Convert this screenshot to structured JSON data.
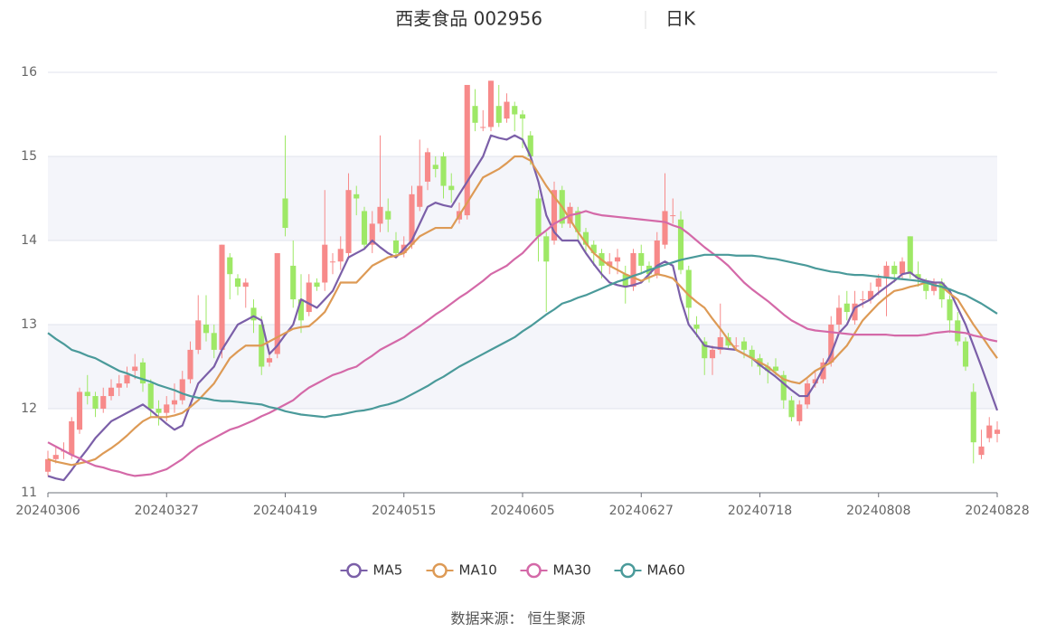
{
  "chart_data": {
    "type": "candlestick",
    "title": "西麦食品 002956",
    "subtitle": "日K",
    "source": "数据来源： 恒生聚源",
    "up_color": "#f78a8a",
    "down_color": "#9ee866",
    "ylim": [
      11,
      16
    ],
    "yticks": [
      11,
      12,
      13,
      14,
      15,
      16
    ],
    "grid": true,
    "legend": "bottom",
    "categories": [
      "20240306",
      null,
      null,
      null,
      null,
      null,
      null,
      null,
      null,
      null,
      null,
      null,
      null,
      null,
      null,
      "20240327",
      null,
      null,
      null,
      null,
      null,
      null,
      null,
      null,
      null,
      null,
      null,
      null,
      null,
      null,
      "20240419",
      null,
      null,
      null,
      null,
      null,
      null,
      null,
      null,
      null,
      null,
      null,
      null,
      null,
      null,
      "20240515",
      null,
      null,
      null,
      null,
      null,
      null,
      null,
      null,
      null,
      null,
      null,
      null,
      null,
      null,
      "20240605",
      null,
      null,
      null,
      null,
      null,
      null,
      null,
      null,
      null,
      null,
      null,
      null,
      null,
      null,
      "20240627",
      null,
      null,
      null,
      null,
      null,
      null,
      null,
      null,
      null,
      null,
      null,
      null,
      null,
      null,
      "20240718",
      null,
      null,
      null,
      null,
      null,
      null,
      null,
      null,
      null,
      null,
      null,
      null,
      null,
      null,
      "20240808",
      null,
      null,
      null,
      null,
      null,
      null,
      null,
      null,
      null,
      null,
      null,
      null,
      null,
      null,
      "20240828"
    ],
    "candles": [
      [
        11.25,
        11.4,
        11.2,
        11.5
      ],
      [
        11.4,
        11.45,
        11.35,
        11.55
      ],
      [
        11.5,
        11.5,
        11.4,
        11.6
      ],
      [
        11.45,
        11.85,
        11.4,
        11.9
      ],
      [
        11.75,
        12.2,
        11.7,
        12.25
      ],
      [
        12.2,
        12.15,
        12.05,
        12.4
      ],
      [
        12.15,
        12.0,
        11.9,
        12.2
      ],
      [
        12.0,
        12.15,
        11.95,
        12.25
      ],
      [
        12.15,
        12.25,
        12.1,
        12.35
      ],
      [
        12.25,
        12.3,
        12.15,
        12.4
      ],
      [
        12.3,
        12.4,
        12.25,
        12.5
      ],
      [
        12.45,
        12.5,
        12.35,
        12.65
      ],
      [
        12.55,
        12.3,
        12.2,
        12.6
      ],
      [
        12.3,
        12.0,
        11.9,
        12.35
      ],
      [
        12.0,
        11.95,
        11.8,
        12.1
      ],
      [
        11.95,
        12.05,
        11.85,
        12.15
      ],
      [
        12.05,
        12.1,
        11.95,
        12.3
      ],
      [
        12.1,
        12.35,
        12.05,
        12.45
      ],
      [
        12.35,
        12.7,
        12.3,
        12.8
      ],
      [
        12.7,
        13.05,
        12.65,
        13.35
      ],
      [
        13.0,
        12.9,
        12.8,
        13.35
      ],
      [
        12.9,
        12.7,
        12.6,
        13.0
      ],
      [
        12.7,
        13.95,
        12.6,
        13.95
      ],
      [
        13.8,
        13.6,
        13.3,
        13.85
      ],
      [
        13.55,
        13.45,
        13.35,
        13.6
      ],
      [
        13.45,
        13.5,
        13.2,
        13.55
      ],
      [
        13.2,
        13.05,
        12.9,
        13.3
      ],
      [
        13.0,
        12.5,
        12.4,
        13.1
      ],
      [
        12.55,
        12.6,
        12.5,
        12.65
      ],
      [
        12.65,
        13.85,
        12.6,
        13.85
      ],
      [
        14.5,
        14.15,
        14.05,
        15.25
      ],
      [
        13.7,
        13.3,
        13.2,
        14.0
      ],
      [
        13.3,
        13.05,
        12.9,
        13.6
      ],
      [
        13.15,
        13.5,
        13.1,
        13.6
      ],
      [
        13.5,
        13.45,
        13.4,
        13.55
      ],
      [
        13.5,
        13.95,
        13.4,
        14.6
      ],
      [
        13.75,
        13.75,
        13.6,
        13.85
      ],
      [
        13.75,
        13.9,
        13.65,
        14.05
      ],
      [
        13.85,
        14.6,
        13.8,
        14.8
      ],
      [
        14.55,
        14.5,
        14.3,
        14.65
      ],
      [
        14.35,
        13.95,
        13.9,
        14.4
      ],
      [
        13.95,
        14.2,
        13.85,
        14.35
      ],
      [
        14.2,
        14.4,
        14.1,
        15.25
      ],
      [
        14.35,
        14.25,
        14.1,
        14.5
      ],
      [
        14.0,
        13.85,
        13.8,
        14.1
      ],
      [
        13.85,
        13.95,
        13.8,
        14.05
      ],
      [
        13.95,
        14.55,
        13.9,
        14.65
      ],
      [
        14.4,
        14.65,
        14.35,
        15.2
      ],
      [
        14.7,
        15.05,
        14.6,
        15.1
      ],
      [
        14.9,
        14.85,
        14.75,
        15.0
      ],
      [
        15.0,
        14.65,
        14.5,
        15.05
      ],
      [
        14.65,
        14.6,
        14.45,
        14.8
      ],
      [
        14.25,
        14.35,
        14.2,
        14.45
      ],
      [
        14.3,
        15.85,
        14.25,
        15.85
      ],
      [
        15.6,
        15.4,
        15.3,
        15.8
      ],
      [
        15.35,
        15.35,
        15.3,
        15.55
      ],
      [
        15.35,
        15.9,
        15.3,
        15.9
      ],
      [
        15.6,
        15.4,
        15.35,
        15.85
      ],
      [
        15.45,
        15.65,
        15.4,
        15.75
      ],
      [
        15.6,
        15.5,
        15.3,
        15.65
      ],
      [
        15.5,
        15.45,
        15.1,
        15.55
      ],
      [
        15.25,
        15.0,
        14.9,
        15.3
      ],
      [
        14.5,
        14.05,
        13.75,
        14.6
      ],
      [
        14.05,
        13.75,
        13.15,
        14.1
      ],
      [
        14.0,
        14.6,
        13.95,
        14.7
      ],
      [
        14.6,
        14.2,
        14.15,
        14.65
      ],
      [
        14.2,
        14.4,
        14.15,
        14.45
      ],
      [
        14.35,
        14.1,
        14.0,
        14.4
      ],
      [
        14.1,
        13.95,
        13.85,
        14.15
      ],
      [
        13.95,
        13.85,
        13.7,
        14.0
      ],
      [
        13.85,
        13.7,
        13.55,
        13.9
      ],
      [
        13.7,
        13.75,
        13.6,
        13.85
      ],
      [
        13.75,
        13.8,
        13.6,
        13.9
      ],
      [
        13.6,
        13.45,
        13.25,
        13.7
      ],
      [
        13.45,
        13.85,
        13.4,
        13.9
      ],
      [
        13.85,
        13.7,
        13.6,
        13.95
      ],
      [
        13.7,
        13.6,
        13.5,
        13.75
      ],
      [
        13.6,
        14.0,
        13.55,
        14.1
      ],
      [
        13.95,
        14.35,
        13.9,
        14.8
      ],
      [
        14.3,
        14.3,
        14.2,
        14.5
      ],
      [
        14.25,
        13.65,
        13.6,
        14.35
      ],
      [
        13.65,
        13.2,
        13.05,
        13.7
      ],
      [
        13.0,
        12.95,
        12.85,
        13.1
      ],
      [
        12.8,
        12.6,
        12.4,
        12.85
      ],
      [
        12.6,
        12.7,
        12.4,
        12.75
      ],
      [
        12.7,
        12.85,
        12.65,
        13.25
      ],
      [
        12.85,
        12.75,
        12.7,
        12.9
      ],
      [
        12.75,
        12.75,
        12.7,
        12.85
      ],
      [
        12.8,
        12.7,
        12.6,
        12.85
      ],
      [
        12.7,
        12.6,
        12.5,
        12.75
      ],
      [
        12.6,
        12.5,
        12.4,
        12.65
      ],
      [
        12.5,
        12.45,
        12.3,
        12.55
      ],
      [
        12.5,
        12.45,
        12.4,
        12.6
      ],
      [
        12.4,
        12.1,
        12.0,
        12.45
      ],
      [
        12.1,
        11.9,
        11.85,
        12.15
      ],
      [
        11.85,
        12.05,
        11.8,
        12.1
      ],
      [
        12.05,
        12.3,
        12.0,
        12.35
      ],
      [
        12.3,
        12.35,
        12.25,
        12.45
      ],
      [
        12.35,
        12.55,
        12.3,
        12.6
      ],
      [
        12.55,
        13.0,
        12.5,
        13.1
      ],
      [
        13.0,
        13.2,
        12.9,
        13.35
      ],
      [
        13.25,
        13.15,
        13.05,
        13.4
      ],
      [
        13.05,
        13.25,
        13.0,
        13.4
      ],
      [
        13.3,
        13.3,
        13.2,
        13.4
      ],
      [
        13.3,
        13.4,
        13.25,
        13.5
      ],
      [
        13.45,
        13.55,
        13.35,
        13.6
      ],
      [
        13.55,
        13.7,
        13.1,
        13.75
      ],
      [
        13.7,
        13.6,
        13.5,
        13.75
      ],
      [
        13.6,
        13.75,
        13.55,
        13.8
      ],
      [
        14.05,
        13.6,
        13.55,
        14.05
      ],
      [
        13.6,
        13.55,
        13.45,
        13.75
      ],
      [
        13.5,
        13.4,
        13.3,
        13.55
      ],
      [
        13.4,
        13.5,
        13.35,
        13.55
      ],
      [
        13.5,
        13.3,
        13.2,
        13.55
      ],
      [
        13.3,
        13.05,
        12.9,
        13.35
      ],
      [
        13.05,
        12.8,
        12.75,
        13.15
      ],
      [
        12.8,
        12.5,
        12.45,
        12.85
      ],
      [
        12.2,
        11.6,
        11.35,
        12.3
      ],
      [
        11.45,
        11.55,
        11.4,
        11.75
      ],
      [
        11.65,
        11.8,
        11.6,
        11.9
      ],
      [
        11.7,
        11.75,
        11.6,
        11.85
      ]
    ],
    "series": [
      {
        "name": "MA5",
        "color": "#7b5fa8",
        "values": [
          11.2,
          11.17,
          11.15,
          11.27,
          11.4,
          11.52,
          11.65,
          11.75,
          11.85,
          11.9,
          11.95,
          12.0,
          12.05,
          11.98,
          11.9,
          11.82,
          11.75,
          11.8,
          12.05,
          12.3,
          12.4,
          12.5,
          12.7,
          12.85,
          13.0,
          13.05,
          13.1,
          13.05,
          12.65,
          12.75,
          12.88,
          13.0,
          13.3,
          13.25,
          13.2,
          13.3,
          13.4,
          13.6,
          13.8,
          13.85,
          13.9,
          14.0,
          13.92,
          13.85,
          13.8,
          13.9,
          14.0,
          14.2,
          14.4,
          14.45,
          14.42,
          14.4,
          14.55,
          14.7,
          14.85,
          15.0,
          15.25,
          15.22,
          15.2,
          15.25,
          15.2,
          15.0,
          14.7,
          14.3,
          14.1,
          14.0,
          14.0,
          14.0,
          13.85,
          13.72,
          13.6,
          13.5,
          13.47,
          13.45,
          13.47,
          13.5,
          13.6,
          13.7,
          13.75,
          13.7,
          13.3,
          13.0,
          12.88,
          12.75,
          12.73,
          12.72,
          12.71,
          12.7,
          12.65,
          12.6,
          12.52,
          12.45,
          12.38,
          12.3,
          12.22,
          12.15,
          12.15,
          12.3,
          12.48,
          12.65,
          12.9,
          13.0,
          13.2,
          13.25,
          13.3,
          13.38,
          13.45,
          13.52,
          13.6,
          13.62,
          13.55,
          13.52,
          13.5,
          13.5,
          13.4,
          13.2,
          13.0,
          12.75,
          12.5,
          12.24,
          11.98
        ]
      },
      {
        "name": "MA10",
        "color": "#dd9a55",
        "values": [
          11.4,
          11.37,
          11.35,
          11.33,
          11.35,
          11.37,
          11.4,
          11.47,
          11.53,
          11.6,
          11.68,
          11.77,
          11.85,
          11.9,
          11.9,
          11.9,
          11.92,
          11.95,
          12.02,
          12.1,
          12.2,
          12.3,
          12.45,
          12.6,
          12.68,
          12.75,
          12.75,
          12.75,
          12.8,
          12.85,
          12.9,
          12.95,
          12.97,
          12.98,
          13.06,
          13.15,
          13.32,
          13.5,
          13.5,
          13.5,
          13.6,
          13.7,
          13.75,
          13.8,
          13.82,
          13.85,
          13.95,
          14.05,
          14.1,
          14.15,
          14.15,
          14.15,
          14.3,
          14.45,
          14.6,
          14.75,
          14.8,
          14.85,
          14.92,
          15.0,
          15.0,
          14.95,
          14.8,
          14.65,
          14.52,
          14.4,
          14.25,
          14.1,
          13.97,
          13.85,
          13.77,
          13.7,
          13.65,
          13.6,
          13.56,
          13.52,
          13.56,
          13.6,
          13.58,
          13.55,
          13.45,
          13.35,
          13.27,
          13.2,
          13.07,
          12.95,
          12.82,
          12.7,
          12.65,
          12.6,
          12.55,
          12.5,
          12.42,
          12.35,
          12.32,
          12.3,
          12.37,
          12.45,
          12.5,
          12.55,
          12.65,
          12.75,
          12.9,
          13.05,
          13.15,
          13.25,
          13.33,
          13.4,
          13.42,
          13.45,
          13.47,
          13.5,
          13.47,
          13.45,
          13.37,
          13.3,
          13.15,
          13.0,
          12.87,
          12.73,
          12.6
        ]
      },
      {
        "name": "MA30",
        "color": "#d469a8",
        "values": [
          11.6,
          11.55,
          11.5,
          11.45,
          11.41,
          11.36,
          11.32,
          11.3,
          11.27,
          11.25,
          11.22,
          11.2,
          11.21,
          11.22,
          11.25,
          11.28,
          11.34,
          11.4,
          11.48,
          11.55,
          11.6,
          11.65,
          11.7,
          11.75,
          11.78,
          11.82,
          11.86,
          11.91,
          11.95,
          12.0,
          12.05,
          12.1,
          12.18,
          12.25,
          12.3,
          12.35,
          12.4,
          12.43,
          12.47,
          12.5,
          12.57,
          12.63,
          12.7,
          12.75,
          12.8,
          12.85,
          12.92,
          12.98,
          13.05,
          13.12,
          13.18,
          13.25,
          13.32,
          13.38,
          13.45,
          13.52,
          13.6,
          13.65,
          13.7,
          13.78,
          13.85,
          13.95,
          14.05,
          14.12,
          14.2,
          14.25,
          14.3,
          14.32,
          14.35,
          14.32,
          14.3,
          14.29,
          14.28,
          14.27,
          14.26,
          14.25,
          14.24,
          14.23,
          14.22,
          14.18,
          14.15,
          14.08,
          14.0,
          13.92,
          13.85,
          13.78,
          13.7,
          13.6,
          13.5,
          13.42,
          13.35,
          13.28,
          13.2,
          13.12,
          13.05,
          13.0,
          12.95,
          12.93,
          12.92,
          12.91,
          12.9,
          12.89,
          12.88,
          12.88,
          12.88,
          12.88,
          12.88,
          12.87,
          12.87,
          12.87,
          12.87,
          12.88,
          12.9,
          12.91,
          12.92,
          12.91,
          12.9,
          12.87,
          12.85,
          12.82,
          12.8
        ]
      },
      {
        "name": "MA60",
        "color": "#4a9a9a",
        "values": [
          12.9,
          12.83,
          12.77,
          12.7,
          12.67,
          12.63,
          12.6,
          12.55,
          12.5,
          12.45,
          12.42,
          12.38,
          12.35,
          12.32,
          12.28,
          12.25,
          12.22,
          12.18,
          12.15,
          12.13,
          12.12,
          12.1,
          12.09,
          12.09,
          12.08,
          12.07,
          12.06,
          12.05,
          12.02,
          12.0,
          11.97,
          11.95,
          11.93,
          11.92,
          11.91,
          11.9,
          11.92,
          11.93,
          11.95,
          11.97,
          11.98,
          12.0,
          12.03,
          12.05,
          12.08,
          12.12,
          12.17,
          12.22,
          12.27,
          12.33,
          12.38,
          12.44,
          12.5,
          12.55,
          12.6,
          12.65,
          12.7,
          12.75,
          12.8,
          12.85,
          12.92,
          12.98,
          13.05,
          13.12,
          13.18,
          13.25,
          13.28,
          13.32,
          13.35,
          13.39,
          13.43,
          13.47,
          13.51,
          13.54,
          13.58,
          13.61,
          13.65,
          13.68,
          13.71,
          13.74,
          13.77,
          13.79,
          13.81,
          13.83,
          13.83,
          13.83,
          13.83,
          13.82,
          13.82,
          13.82,
          13.81,
          13.79,
          13.78,
          13.76,
          13.74,
          13.72,
          13.7,
          13.67,
          13.65,
          13.63,
          13.62,
          13.6,
          13.59,
          13.59,
          13.58,
          13.57,
          13.56,
          13.55,
          13.54,
          13.53,
          13.52,
          13.5,
          13.47,
          13.45,
          13.42,
          13.38,
          13.35,
          13.3,
          13.25,
          13.19,
          13.13
        ]
      }
    ]
  }
}
